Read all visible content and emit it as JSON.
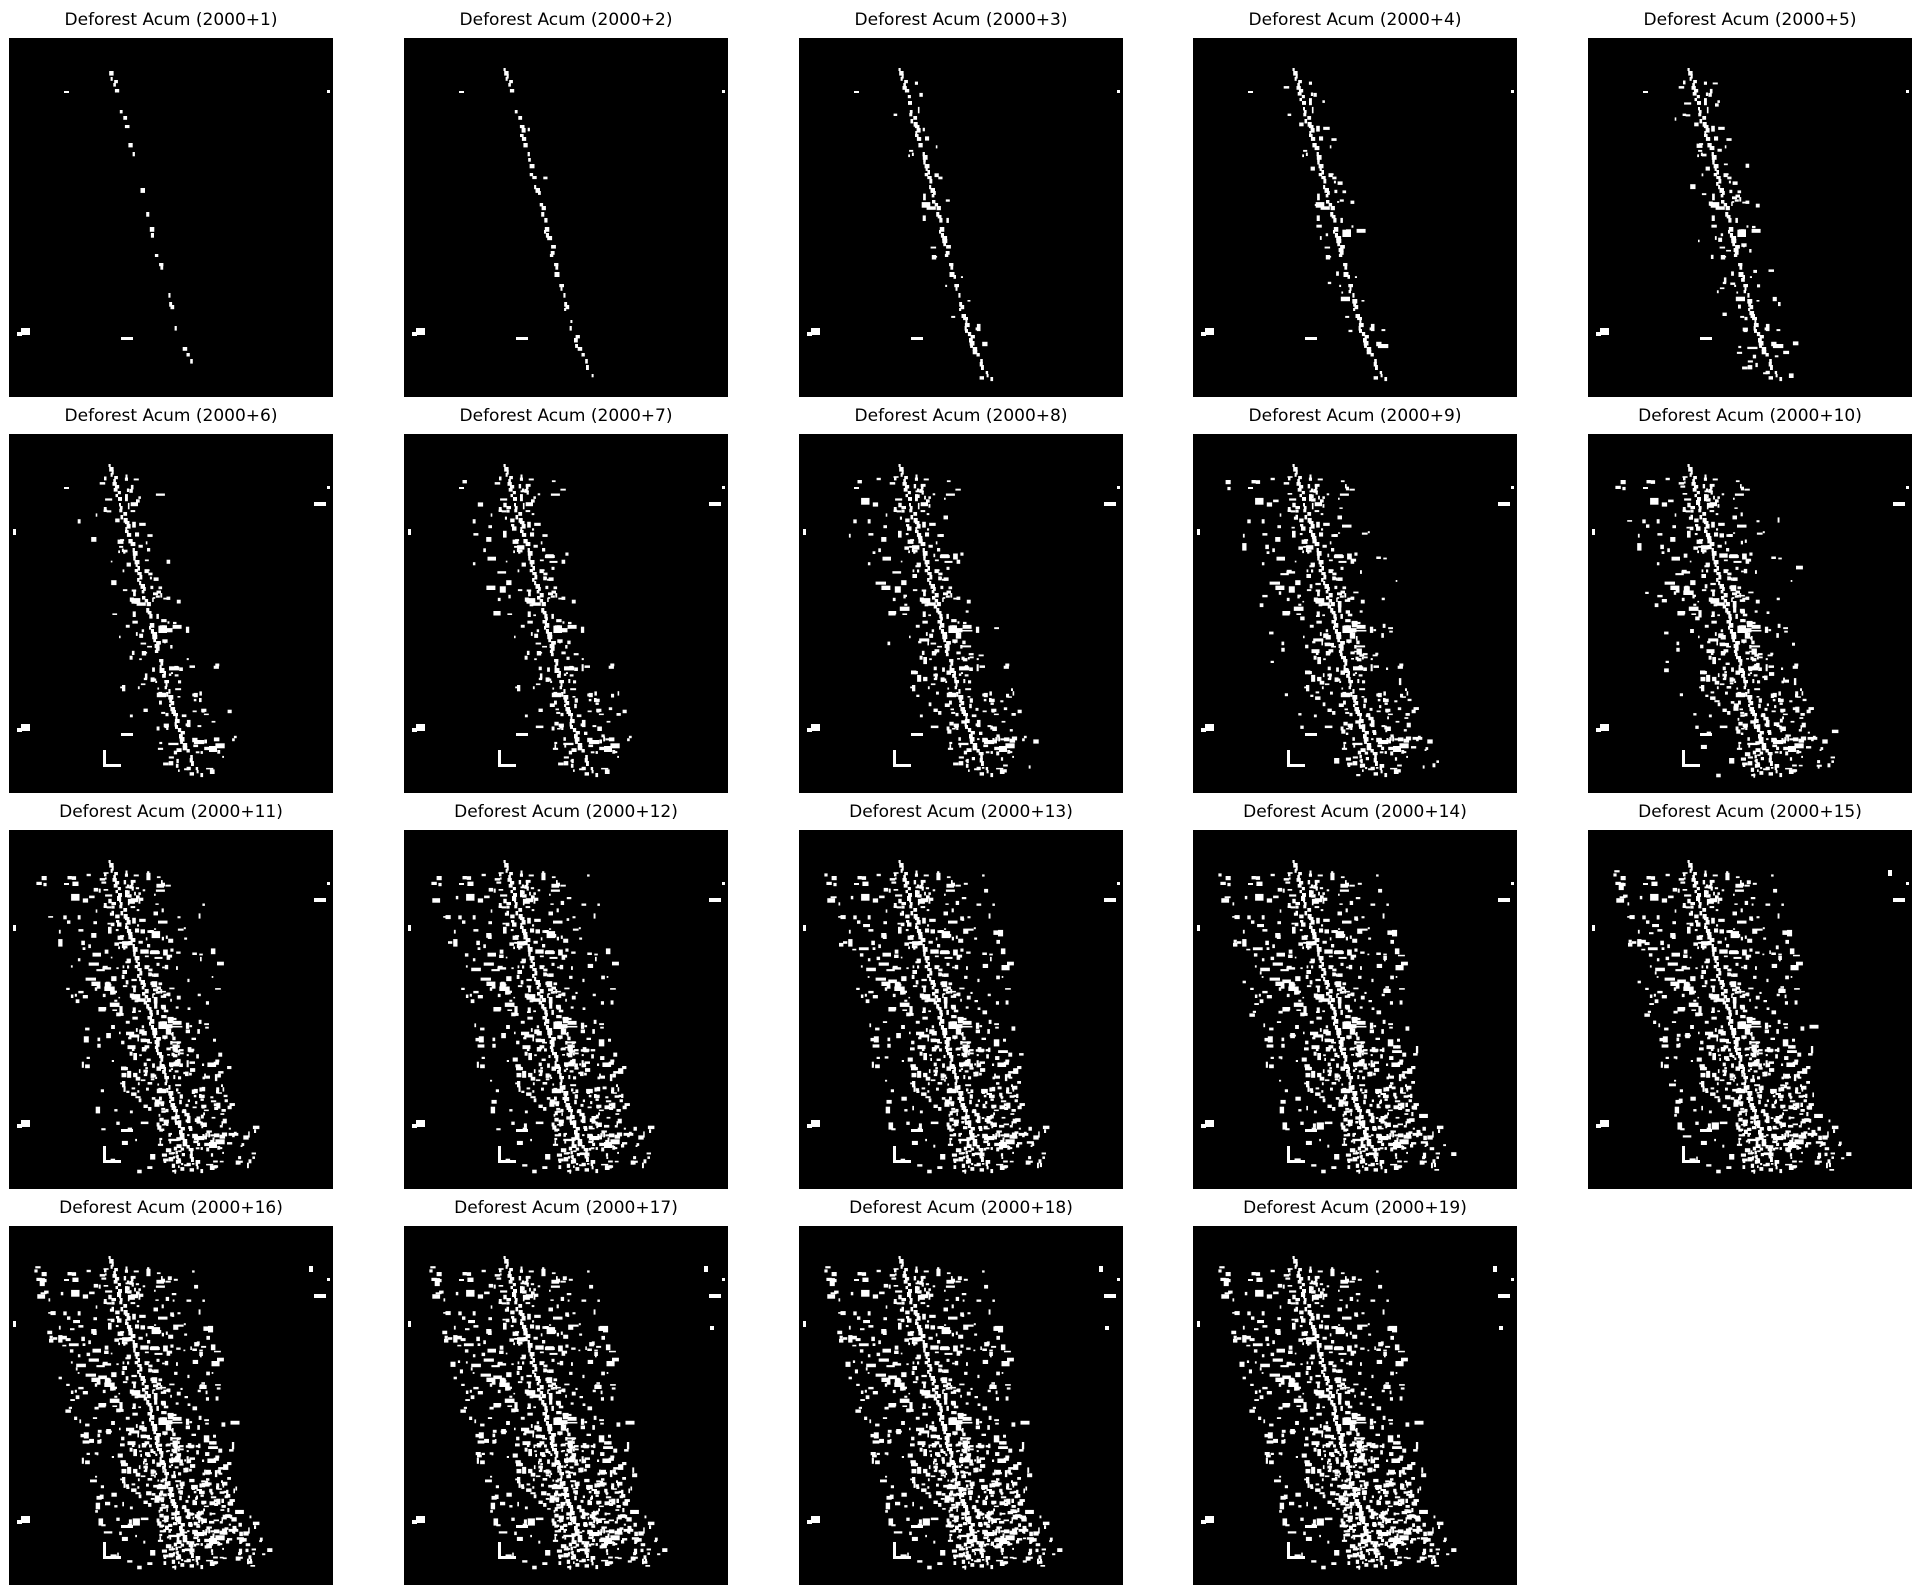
{
  "colors": {
    "background": "#000000",
    "deforested": "#ffffff",
    "page": "#ffffff"
  },
  "panels": [
    {
      "title": "Deforest Acum (2000+1)",
      "year_offset": 1
    },
    {
      "title": "Deforest Acum (2000+2)",
      "year_offset": 2
    },
    {
      "title": "Deforest Acum (2000+3)",
      "year_offset": 3
    },
    {
      "title": "Deforest Acum (2000+4)",
      "year_offset": 4
    },
    {
      "title": "Deforest Acum (2000+5)",
      "year_offset": 5
    },
    {
      "title": "Deforest Acum (2000+6)",
      "year_offset": 6
    },
    {
      "title": "Deforest Acum (2000+7)",
      "year_offset": 7
    },
    {
      "title": "Deforest Acum (2000+8)",
      "year_offset": 8
    },
    {
      "title": "Deforest Acum (2000+9)",
      "year_offset": 9
    },
    {
      "title": "Deforest Acum (2000+10)",
      "year_offset": 10
    },
    {
      "title": "Deforest Acum (2000+11)",
      "year_offset": 11
    },
    {
      "title": "Deforest Acum (2000+12)",
      "year_offset": 12
    },
    {
      "title": "Deforest Acum (2000+13)",
      "year_offset": 13
    },
    {
      "title": "Deforest Acum (2000+14)",
      "year_offset": 14
    },
    {
      "title": "Deforest Acum (2000+15)",
      "year_offset": 15
    },
    {
      "title": "Deforest Acum (2000+16)",
      "year_offset": 16
    },
    {
      "title": "Deforest Acum (2000+17)",
      "year_offset": 17
    },
    {
      "title": "Deforest Acum (2000+18)",
      "year_offset": 18
    },
    {
      "title": "Deforest Acum (2000+19)",
      "year_offset": 19
    }
  ]
}
